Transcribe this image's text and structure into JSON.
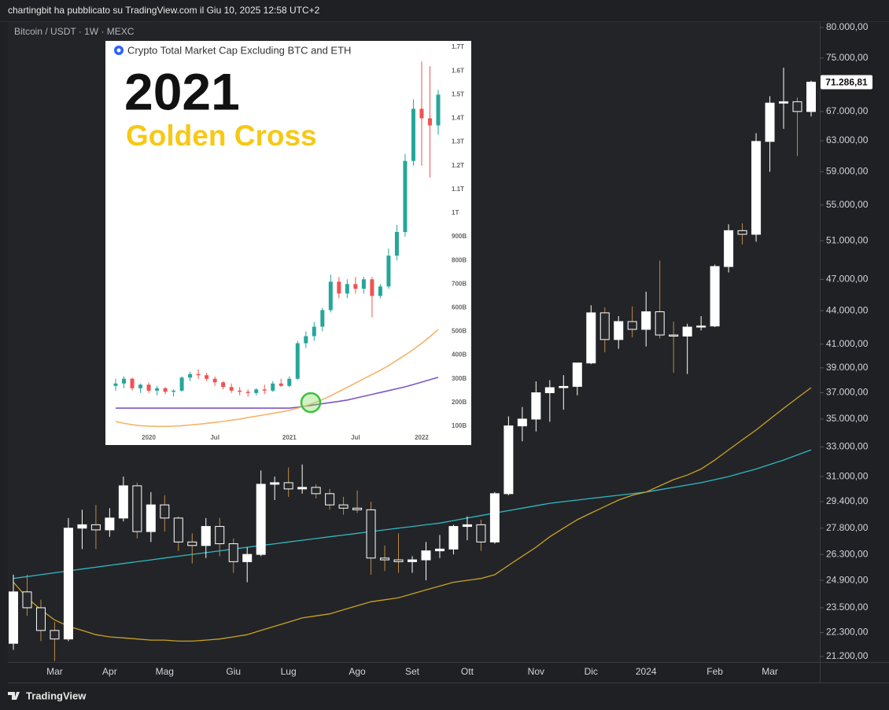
{
  "header": "chartingbit ha pubblicato su TradingView.com il Giu 10, 2025 12:58 UTC+2",
  "footer": "TradingView",
  "chart_data": [
    {
      "type": "candlestick",
      "title": "Bitcoin / USDT · 1W · MEXC",
      "log_scale": true,
      "grid": false,
      "up_color": "#ffffff",
      "down_color": "#26282c",
      "border_color": "#ffffff",
      "wick_up": "#ffffff",
      "wick_down": "#c08a45",
      "categories": [
        null,
        null,
        null,
        "Mar",
        null,
        null,
        null,
        "Apr",
        null,
        null,
        null,
        "Mag",
        null,
        null,
        null,
        null,
        "Giu",
        null,
        null,
        null,
        "Lug",
        null,
        null,
        null,
        null,
        "Ago",
        null,
        null,
        null,
        "Set",
        null,
        null,
        null,
        "Ott",
        null,
        null,
        null,
        null,
        "Nov",
        null,
        null,
        null,
        "Dic",
        null,
        null,
        null,
        "2024",
        null,
        null,
        null,
        null,
        "Feb",
        null,
        null,
        null,
        "Mar",
        null,
        null,
        null
      ],
      "open": [
        21800,
        24300,
        23500,
        22400,
        22000,
        27800,
        28000,
        27700,
        28400,
        30400,
        27600,
        29200,
        28400,
        27000,
        26800,
        27900,
        26900,
        25900,
        26300,
        30500,
        30600,
        30200,
        30300,
        29900,
        29200,
        29000,
        28900,
        26100,
        26000,
        25900,
        26000,
        26500,
        26600,
        27900,
        28000,
        27000,
        29900,
        34500,
        35000,
        37000,
        37400,
        37500,
        39400,
        43800,
        41400,
        43000,
        42300,
        43900,
        41800,
        41700,
        42500,
        42600,
        48300,
        52100,
        51700,
        62900,
        68200,
        68400,
        67000
      ],
      "high": [
        25200,
        25200,
        23900,
        22800,
        28400,
        28900,
        29200,
        29000,
        31000,
        30600,
        30000,
        29800,
        28500,
        27500,
        28400,
        28400,
        27200,
        26700,
        31400,
        31000,
        31600,
        31800,
        30500,
        30200,
        29700,
        30100,
        29400,
        26800,
        27500,
        26200,
        27000,
        27400,
        28000,
        28500,
        28300,
        30000,
        35200,
        35900,
        37900,
        38000,
        38400,
        39000,
        44500,
        44300,
        43500,
        44400,
        45800,
        48900,
        43000,
        42800,
        43500,
        48500,
        52800,
        52900,
        64000,
        69200,
        73500,
        69000,
        71500
      ],
      "low": [
        21500,
        23100,
        21900,
        21000,
        21900,
        26600,
        26600,
        27300,
        28200,
        27200,
        27000,
        27600,
        26500,
        25800,
        26100,
        26200,
        25300,
        24800,
        26200,
        29500,
        29700,
        29900,
        29600,
        28900,
        28600,
        28700,
        25200,
        25400,
        25300,
        25300,
        24900,
        26100,
        26300,
        27100,
        26500,
        26900,
        29800,
        33400,
        34100,
        34800,
        35700,
        36800,
        39300,
        40300,
        40600,
        41600,
        40800,
        41500,
        38600,
        38500,
        42200,
        42500,
        47700,
        50600,
        50900,
        59000,
        64600,
        61000,
        66300
      ],
      "close": [
        24300,
        23500,
        22400,
        22000,
        27800,
        28000,
        27700,
        28400,
        30400,
        27600,
        29200,
        28400,
        27000,
        26800,
        27900,
        26900,
        25900,
        26300,
        30500,
        30600,
        30200,
        30300,
        29900,
        29200,
        29000,
        28900,
        26100,
        26000,
        25900,
        26000,
        26500,
        26600,
        27900,
        28000,
        27000,
        29900,
        34500,
        35000,
        37000,
        37400,
        37500,
        39400,
        43800,
        41400,
        43000,
        42300,
        43900,
        41800,
        41700,
        42500,
        42600,
        48300,
        52100,
        51700,
        62900,
        68200,
        68400,
        67000,
        71286.81
      ],
      "series": [
        {
          "color": "#2fb8c6",
          "values": [
            25000,
            25100,
            25200,
            25300,
            25400,
            25500,
            25600,
            25700,
            25800,
            25900,
            26000,
            26100,
            26200,
            26300,
            26400,
            26500,
            26600,
            26700,
            26800,
            26900,
            27000,
            27100,
            27200,
            27300,
            27400,
            27500,
            27600,
            27700,
            27800,
            27900,
            28000,
            28100,
            28250,
            28400,
            28550,
            28700,
            28850,
            29000,
            29150,
            29300,
            29400,
            29500,
            29600,
            29700,
            29800,
            29900,
            30000,
            30150,
            30300,
            30450,
            30600,
            30800,
            31000,
            31250,
            31500,
            31800,
            32100,
            32450,
            32800
          ]
        },
        {
          "color": "#c9a227",
          "values": [
            24800,
            24000,
            23400,
            22900,
            22600,
            22400,
            22200,
            22100,
            22050,
            22000,
            21950,
            21950,
            21900,
            21900,
            21950,
            22000,
            22100,
            22200,
            22400,
            22600,
            22800,
            23000,
            23100,
            23200,
            23400,
            23600,
            23800,
            23900,
            24000,
            24200,
            24400,
            24600,
            24800,
            24900,
            25000,
            25200,
            25700,
            26200,
            26700,
            27300,
            27800,
            28300,
            28700,
            29100,
            29500,
            29800,
            30000,
            30400,
            30800,
            31100,
            31500,
            32100,
            32800,
            33500,
            34200,
            35000,
            35800,
            36600,
            37400
          ]
        }
      ],
      "last_price": {
        "value": 71286.81,
        "label": "71.286,81"
      },
      "ylim": [
        20955,
        80936
      ],
      "yticks": [
        {
          "value": 80000,
          "label": "80.000,00"
        },
        {
          "value": 75000,
          "label": "75.000,00"
        },
        {
          "value": 67000,
          "label": "67.000,00"
        },
        {
          "value": 63000,
          "label": "63.000,00"
        },
        {
          "value": 59000,
          "label": "59.000,00"
        },
        {
          "value": 55000,
          "label": "55.000,00"
        },
        {
          "value": 51000,
          "label": "51.000,00"
        },
        {
          "value": 47000,
          "label": "47.000,00"
        },
        {
          "value": 44000,
          "label": "44.000,00"
        },
        {
          "value": 41000,
          "label": "41.000,00"
        },
        {
          "value": 39000,
          "label": "39.000,00"
        },
        {
          "value": 37000,
          "label": "37.000,00"
        },
        {
          "value": 35000,
          "label": "35.000,00"
        },
        {
          "value": 33000,
          "label": "33.000,00"
        },
        {
          "value": 31000,
          "label": "31.000,00"
        },
        {
          "value": 29400,
          "label": "29.400,00"
        },
        {
          "value": 27800,
          "label": "27.800,00"
        },
        {
          "value": 26300,
          "label": "26.300,00"
        },
        {
          "value": 24900,
          "label": "24.900,00"
        },
        {
          "value": 23500,
          "label": "23.500,00"
        },
        {
          "value": 22300,
          "label": "22.300,00"
        },
        {
          "value": 21200,
          "label": "21.200,00"
        }
      ]
    },
    {
      "type": "candlestick",
      "title": "Crypto Total Market Cap Excluding BTC and ETH",
      "annotations": [
        "2021",
        "Golden Cross"
      ],
      "log_scale": false,
      "up_color": "#26a69a",
      "down_color": "#ef5350",
      "border_color": null,
      "wick_up": "#26a69a",
      "wick_down": "#ef5350",
      "categories": [
        null,
        null,
        null,
        null,
        "2020",
        null,
        null,
        null,
        null,
        null,
        null,
        null,
        "Jul",
        null,
        null,
        null,
        null,
        null,
        null,
        null,
        null,
        "2021",
        null,
        null,
        null,
        null,
        null,
        null,
        null,
        "Jul",
        null,
        null,
        null,
        null,
        null,
        null,
        null,
        "2022",
        null,
        null
      ],
      "open": [
        270,
        280,
        300,
        260,
        275,
        250,
        260,
        245,
        250,
        305,
        320,
        315,
        300,
        285,
        265,
        250,
        245,
        240,
        255,
        250,
        280,
        270,
        300,
        450,
        480,
        520,
        590,
        710,
        660,
        700,
        680,
        720,
        650,
        690,
        820,
        920,
        1220,
        1440,
        1400,
        1370
      ],
      "high": [
        300,
        310,
        305,
        280,
        285,
        270,
        265,
        255,
        310,
        330,
        340,
        325,
        310,
        290,
        280,
        265,
        255,
        260,
        275,
        290,
        300,
        310,
        460,
        500,
        540,
        600,
        740,
        730,
        720,
        730,
        730,
        730,
        700,
        850,
        950,
        1250,
        1480,
        1640,
        1620,
        1520
      ],
      "low": [
        250,
        260,
        250,
        240,
        240,
        230,
        235,
        225,
        245,
        290,
        300,
        290,
        270,
        255,
        240,
        230,
        225,
        230,
        235,
        245,
        265,
        265,
        295,
        430,
        460,
        500,
        580,
        640,
        640,
        660,
        660,
        560,
        640,
        680,
        800,
        900,
        1200,
        1200,
        1150,
        1330
      ],
      "close": [
        280,
        300,
        260,
        275,
        250,
        260,
        245,
        250,
        305,
        320,
        315,
        300,
        285,
        265,
        250,
        245,
        240,
        255,
        250,
        280,
        270,
        300,
        450,
        480,
        520,
        590,
        710,
        660,
        700,
        680,
        720,
        650,
        690,
        820,
        920,
        1220,
        1440,
        1400,
        1370,
        1500
      ],
      "series": [
        {
          "color": "#7e57c2",
          "values": [
            176,
            176,
            176,
            176,
            176,
            176,
            176,
            176,
            176,
            176,
            176,
            176,
            176,
            176,
            176,
            176,
            176,
            176,
            176,
            176,
            176,
            176,
            180,
            185,
            190,
            195,
            200,
            205,
            210,
            218,
            226,
            234,
            242,
            250,
            258,
            266,
            276,
            286,
            296,
            306
          ]
        },
        {
          "color": "#f7b267",
          "values": [
            120,
            112,
            106,
            102,
            100,
            99,
            99,
            100,
            102,
            105,
            108,
            112,
            116,
            120,
            125,
            130,
            136,
            142,
            148,
            154,
            160,
            167,
            176,
            186,
            198,
            212,
            228,
            246,
            264,
            282,
            300,
            318,
            336,
            356,
            378,
            400,
            424,
            450,
            478,
            508
          ]
        }
      ],
      "ylim": [
        80,
        1717
      ],
      "yticks": [
        {
          "value": 1700,
          "label": "1.7T"
        },
        {
          "value": 1600,
          "label": "1.6T"
        },
        {
          "value": 1500,
          "label": "1.5T"
        },
        {
          "value": 1400,
          "label": "1.4T"
        },
        {
          "value": 1300,
          "label": "1.3T"
        },
        {
          "value": 1200,
          "label": "1.2T"
        },
        {
          "value": 1100,
          "label": "1.1T"
        },
        {
          "value": 1000,
          "label": "1T"
        },
        {
          "value": 900,
          "label": "900B"
        },
        {
          "value": 800,
          "label": "800B"
        },
        {
          "value": 700,
          "label": "700B"
        },
        {
          "value": 600,
          "label": "600B"
        },
        {
          "value": 500,
          "label": "500B"
        },
        {
          "value": 400,
          "label": "400B"
        },
        {
          "value": 300,
          "label": "300B"
        },
        {
          "value": 200,
          "label": "200B"
        },
        {
          "value": 100,
          "label": "100B"
        }
      ]
    }
  ]
}
